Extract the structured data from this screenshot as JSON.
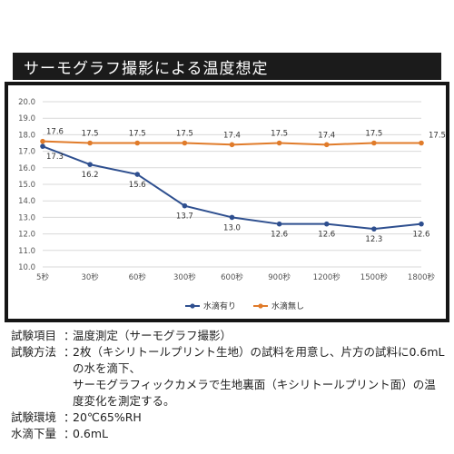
{
  "title": "サーモグラフ撮影による温度想定",
  "chart_data": {
    "type": "line",
    "categories": [
      "5秒",
      "30秒",
      "60秒",
      "300秒",
      "600秒",
      "900秒",
      "1200秒",
      "1500秒",
      "1800秒"
    ],
    "y_ticks": [
      "20.0",
      "19.0",
      "18.0",
      "17.0",
      "16.0",
      "15.0",
      "14.0",
      "13.0",
      "12.0",
      "11.0",
      "10.0"
    ],
    "ylim": [
      10,
      20
    ],
    "grid": true,
    "legend_position": "bottom",
    "series": [
      {
        "name": "水滴有り",
        "color": "#2e4f8f",
        "values": [
          17.3,
          16.2,
          15.6,
          13.7,
          13.0,
          12.6,
          12.6,
          12.3,
          12.6
        ],
        "labels": [
          "17.3",
          "16.2",
          "15.6",
          "13.7",
          "13.0",
          "12.6",
          "12.6",
          "12.3",
          "12.6"
        ]
      },
      {
        "name": "水滴無し",
        "color": "#e07b2a",
        "values": [
          17.6,
          17.5,
          17.5,
          17.5,
          17.4,
          17.5,
          17.4,
          17.5,
          17.5
        ],
        "labels": [
          "17.6",
          "17.5",
          "17.5",
          "17.5",
          "17.4",
          "17.5",
          "17.4",
          "17.5",
          "17.5"
        ]
      }
    ]
  },
  "info": {
    "rows": [
      {
        "key": "試験項目",
        "sep": "：",
        "value": "温度測定（サーモグラフ撮影）"
      },
      {
        "key": "試験方法",
        "sep": "：",
        "value": "2枚（キシリトールプリント生地）の試料を用意し、片方の試料に0.6mLの水を滴下、"
      },
      {
        "key": "",
        "sep": "",
        "value": "サーモグラフィックカメラで生地裏面（キシリトールプリント面）の温度変化を測定する。"
      },
      {
        "key": "試験環境",
        "sep": "：",
        "value": "20℃65%RH"
      },
      {
        "key": "水滴下量",
        "sep": "：",
        "value": "0.6mL"
      }
    ]
  }
}
